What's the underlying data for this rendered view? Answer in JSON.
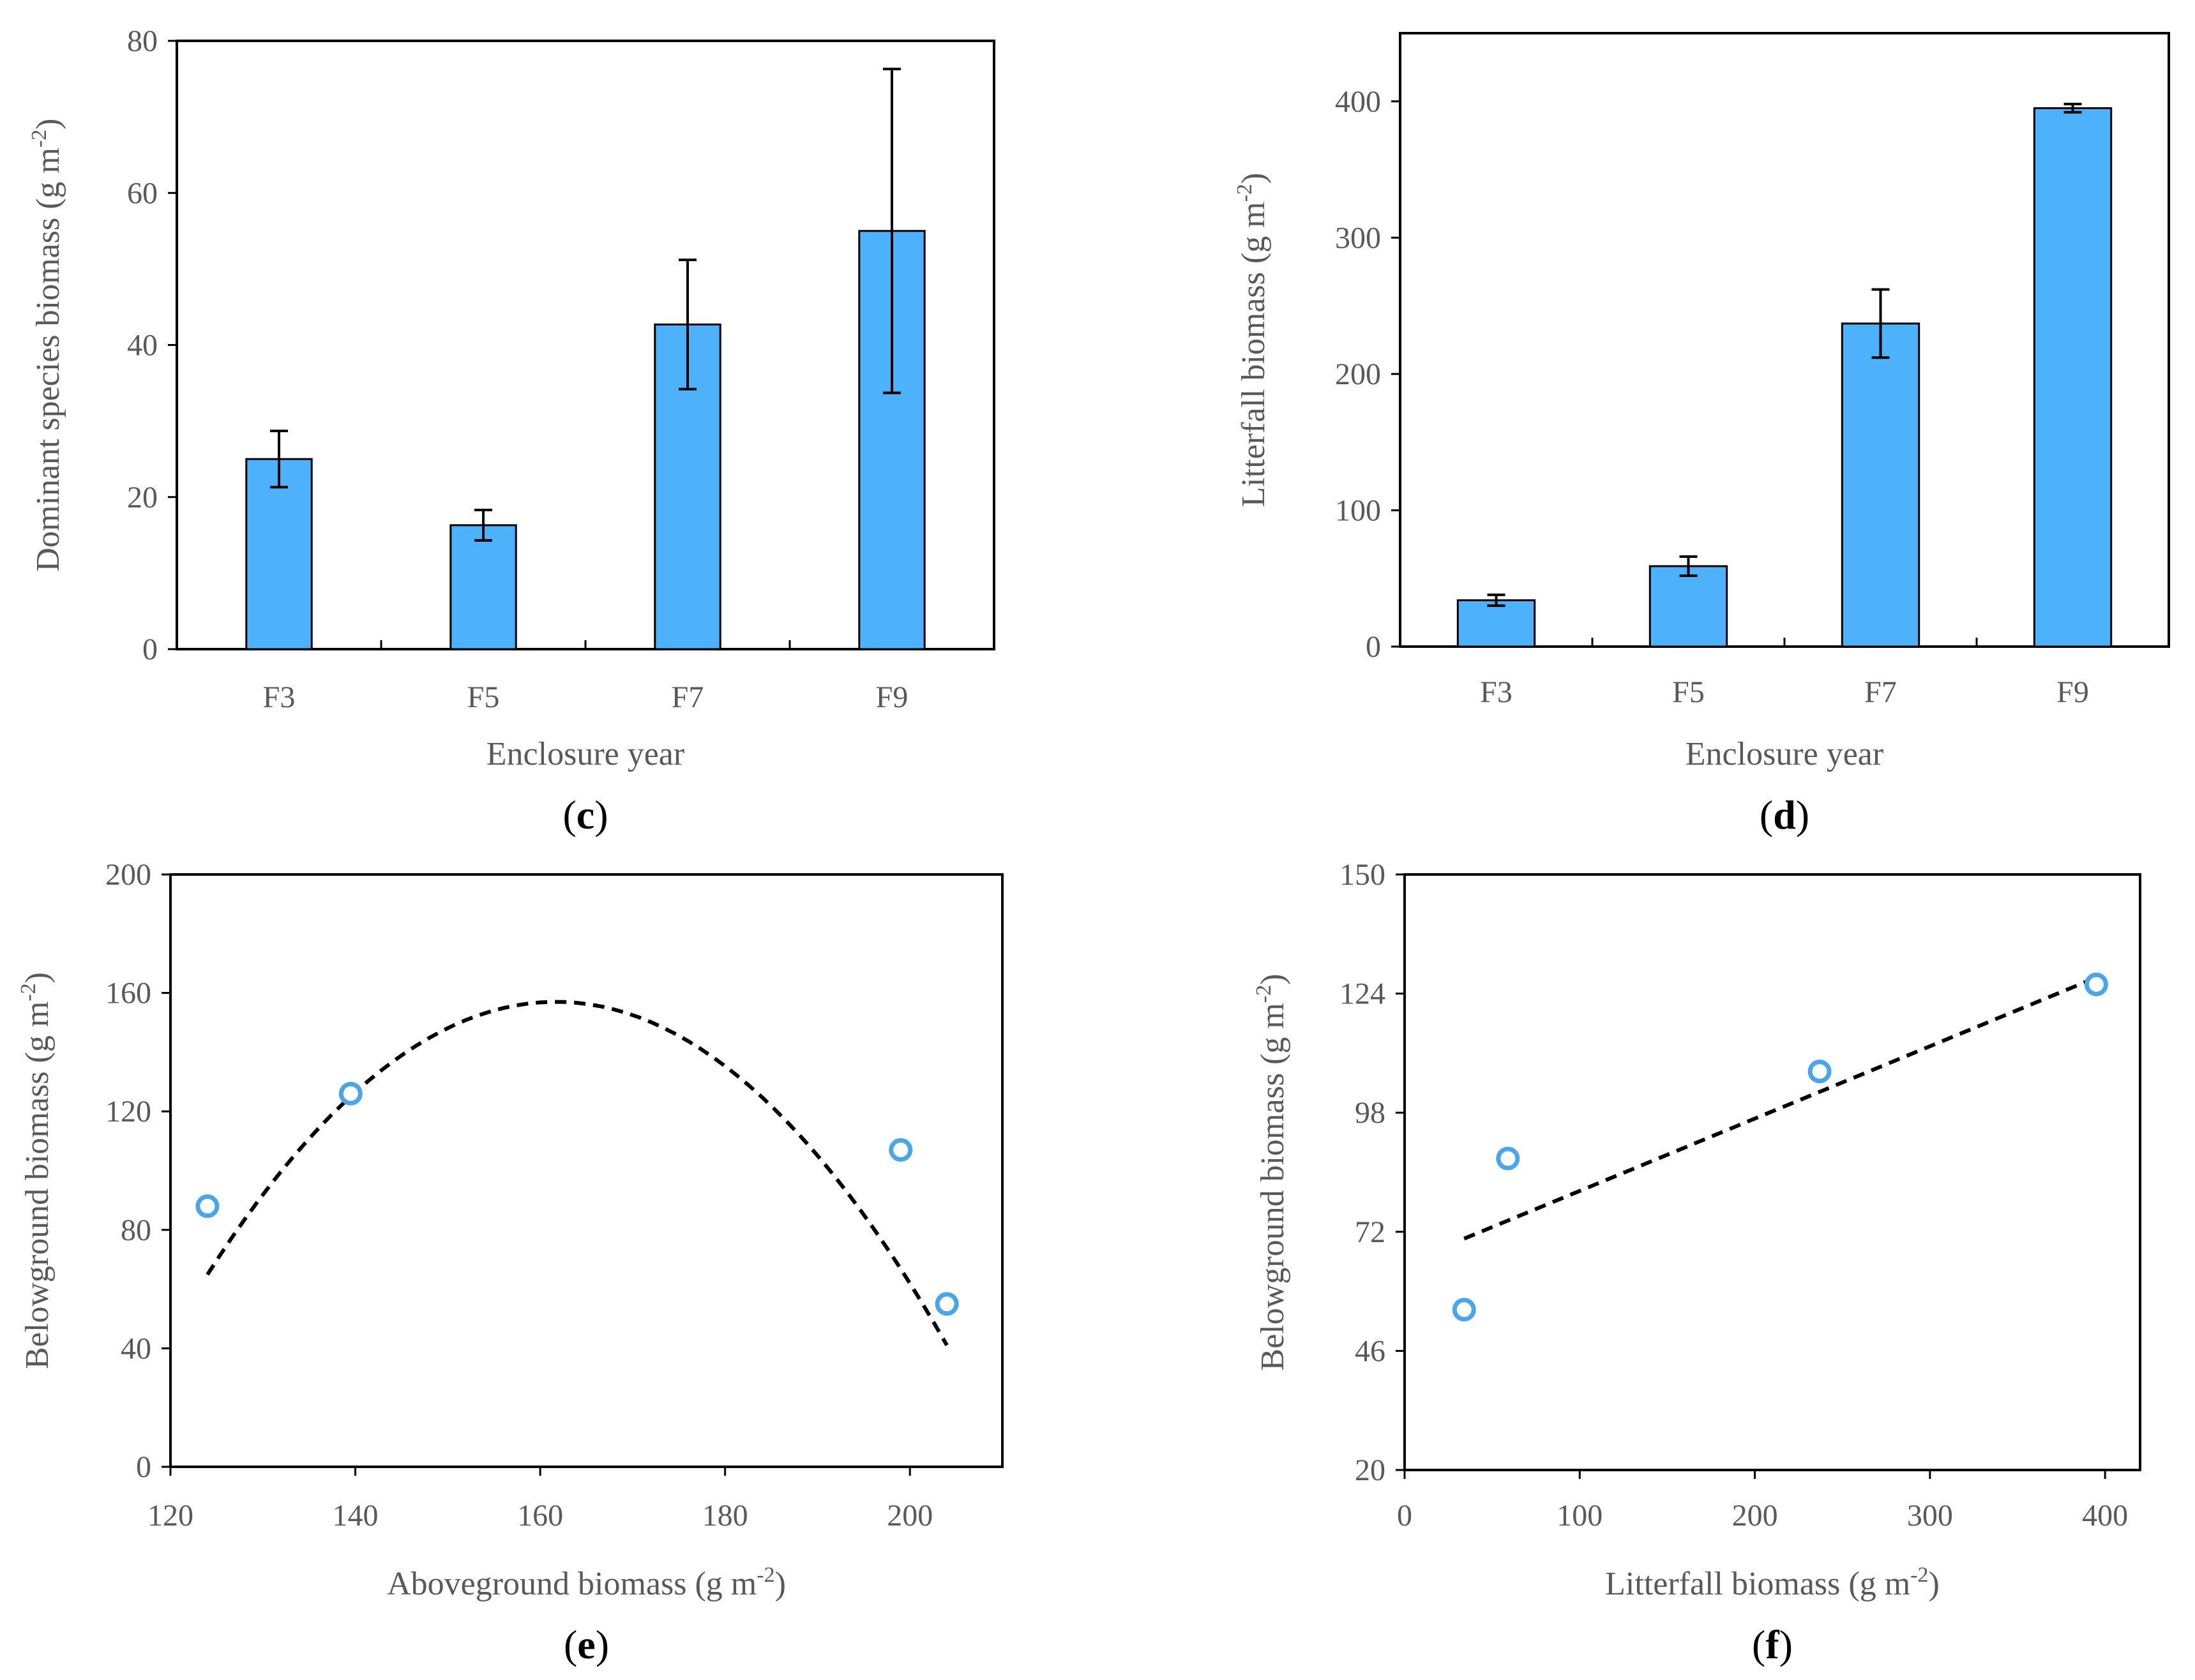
{
  "figure": {
    "panels": [
      "c",
      "d",
      "e",
      "f"
    ]
  },
  "colors": {
    "bar_fill": "#4db2fb",
    "bar_stroke": "#000000",
    "marker": "#4aa6e6",
    "trend": "#000000",
    "text": "#595959"
  },
  "chart_data": [
    {
      "id": "c",
      "panel_label": "c",
      "type": "bar",
      "title": "",
      "xlabel": "Enclosure year",
      "ylabel": "Dominant species biomass (g m",
      "ylabel_sup": "-2",
      "ylabel_end": ")",
      "categories": [
        "F3",
        "F5",
        "F7",
        "F9"
      ],
      "values": [
        25,
        16.3,
        42.7,
        55
      ],
      "errors": [
        3.7,
        2.0,
        8.5,
        21.3
      ],
      "ylim": [
        0,
        80
      ],
      "yticks": [
        0,
        20,
        40,
        60,
        80
      ]
    },
    {
      "id": "d",
      "panel_label": "d",
      "type": "bar",
      "title": "",
      "xlabel": "Enclosure year",
      "ylabel": "Litterfall biomass (g m",
      "ylabel_sup": "-2",
      "ylabel_end": ")",
      "categories": [
        "F3",
        "F5",
        "F7",
        "F9"
      ],
      "values": [
        34,
        59,
        237,
        395
      ],
      "errors": [
        4,
        7,
        25,
        3
      ],
      "ylim": [
        0,
        450
      ],
      "yticks": [
        0,
        100,
        200,
        300,
        400
      ]
    },
    {
      "id": "e",
      "panel_label": "e",
      "type": "scatter",
      "title": "",
      "xlabel": "Aboveground biomass (g m",
      "xlabel_sup": "-2",
      "xlabel_end": ")",
      "ylabel": "Belowground biomass (g m",
      "ylabel_sup": "-2",
      "ylabel_end": ")",
      "points": [
        {
          "x": 124,
          "y": 88
        },
        {
          "x": 139.5,
          "y": 126
        },
        {
          "x": 199,
          "y": 107
        },
        {
          "x": 204,
          "y": 55
        }
      ],
      "trend": {
        "kind": "quadratic",
        "x_range": [
          124,
          204
        ],
        "vertex_x": 161.7,
        "vertex_y": 157,
        "a": -0.0648
      },
      "xlim": [
        120,
        210
      ],
      "ylim": [
        0,
        200
      ],
      "xticks": [
        120,
        140,
        160,
        180,
        200
      ],
      "yticks": [
        0,
        40,
        80,
        120,
        160,
        200
      ]
    },
    {
      "id": "f",
      "panel_label": "f",
      "type": "scatter",
      "title": "",
      "xlabel": "Litterfall biomass (g m",
      "xlabel_sup": "-2",
      "xlabel_end": ")",
      "ylabel": "Belowground biomass (g m",
      "ylabel_sup": "-2",
      "ylabel_end": ")",
      "points": [
        {
          "x": 34,
          "y": 55
        },
        {
          "x": 59,
          "y": 88
        },
        {
          "x": 237,
          "y": 107
        },
        {
          "x": 395,
          "y": 126
        }
      ],
      "trend": {
        "kind": "linear",
        "x_range": [
          34,
          395
        ],
        "y_range": [
          70.5,
          127.5
        ]
      },
      "xlim": [
        0,
        420
      ],
      "ylim": [
        20,
        150
      ],
      "xticks": [
        0,
        100,
        200,
        300,
        400
      ],
      "yticks": [
        20,
        46,
        72,
        98,
        124,
        150
      ]
    }
  ]
}
